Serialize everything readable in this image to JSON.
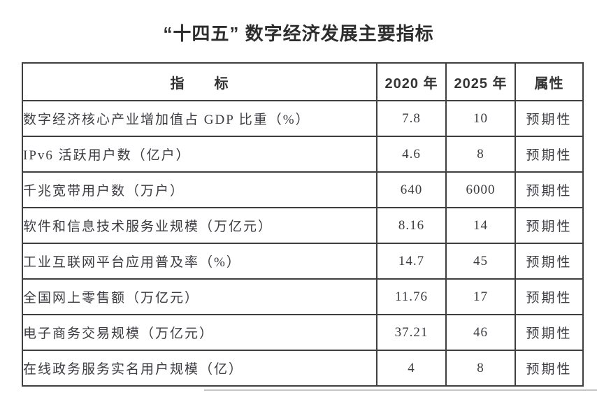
{
  "title": "“十四五” 数字经济发展主要指标",
  "table": {
    "headers": {
      "indicator": "指　　标",
      "y2020": "2020 年",
      "y2025": "2025 年",
      "attribute": "属性"
    },
    "rows": [
      {
        "indicator": "数字经济核心产业增加值占 GDP 比重（%）",
        "y2020": "7.8",
        "y2025": "10",
        "attribute": "预期性"
      },
      {
        "indicator": "IPv6 活跃用户数（亿户）",
        "y2020": "4.6",
        "y2025": "8",
        "attribute": "预期性"
      },
      {
        "indicator": "千兆宽带用户数（万户）",
        "y2020": "640",
        "y2025": "6000",
        "attribute": "预期性"
      },
      {
        "indicator": "软件和信息技术服务业规模（万亿元）",
        "y2020": "8.16",
        "y2025": "14",
        "attribute": "预期性"
      },
      {
        "indicator": "工业互联网平台应用普及率（%）",
        "y2020": "14.7",
        "y2025": "45",
        "attribute": "预期性"
      },
      {
        "indicator": "全国网上零售额（万亿元）",
        "y2020": "11.76",
        "y2025": "17",
        "attribute": "预期性"
      },
      {
        "indicator": "电子商务交易规模（万亿元）",
        "y2020": "37.21",
        "y2025": "46",
        "attribute": "预期性"
      },
      {
        "indicator": "在线政务服务实名用户规模（亿）",
        "y2020": "4",
        "y2025": "8",
        "attribute": "预期性"
      }
    ]
  },
  "colors": {
    "border": "#3f3f3f",
    "body_text": "#3b3b41",
    "title_text": "#2d2d2d"
  }
}
